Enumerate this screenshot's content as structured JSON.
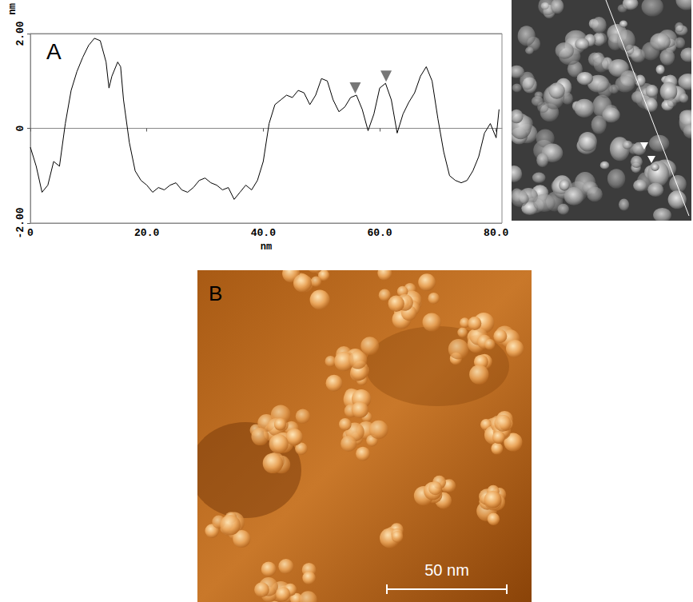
{
  "chart_data": {
    "type": "line",
    "xlabel": "nm",
    "ylabel": "nm",
    "x": [
      0,
      1,
      2,
      3,
      4,
      5,
      6,
      7,
      8,
      9,
      10,
      11,
      12,
      13,
      13.5,
      14,
      15,
      15.5,
      16,
      17,
      18,
      19,
      20,
      21,
      22,
      23,
      24,
      25,
      26,
      27,
      28,
      29,
      30,
      31,
      32,
      33,
      34,
      35,
      36,
      37,
      38,
      39,
      40,
      41,
      42,
      43,
      44,
      45,
      46,
      47,
      48,
      49,
      50,
      51,
      52,
      53,
      54,
      55,
      56,
      57,
      58,
      59,
      60,
      61,
      62,
      63,
      64,
      65,
      66,
      67,
      68,
      69,
      70,
      71,
      72,
      73,
      74,
      75,
      76,
      77,
      78,
      79,
      80,
      80.5
    ],
    "values": [
      -0.4,
      -0.8,
      -1.35,
      -1.2,
      -0.7,
      -0.8,
      0.1,
      0.8,
      1.2,
      1.5,
      1.75,
      1.9,
      1.85,
      1.4,
      0.85,
      1.1,
      1.4,
      1.3,
      0.6,
      -0.3,
      -0.9,
      -1.1,
      -1.2,
      -1.35,
      -1.25,
      -1.3,
      -1.2,
      -1.15,
      -1.3,
      -1.35,
      -1.25,
      -1.1,
      -1.05,
      -1.15,
      -1.2,
      -1.3,
      -1.25,
      -1.5,
      -1.35,
      -1.2,
      -1.3,
      -1.1,
      -0.7,
      0.1,
      0.5,
      0.6,
      0.7,
      0.65,
      0.8,
      0.75,
      0.5,
      0.7,
      1.05,
      1.0,
      0.6,
      0.35,
      0.45,
      0.65,
      0.7,
      0.4,
      -0.05,
      0.3,
      0.85,
      0.95,
      0.6,
      -0.1,
      0.3,
      0.55,
      0.75,
      1.1,
      1.3,
      1.0,
      0.2,
      -0.5,
      -1.0,
      -1.1,
      -1.15,
      -1.1,
      -0.9,
      -0.6,
      -0.1,
      0.1,
      -0.2,
      0.4
    ],
    "color": "#000000",
    "xlim": [
      0,
      81
    ],
    "xticks": [
      0,
      {
        "value": 20,
        "label": "20.0"
      },
      {
        "value": 40,
        "label": "40.0"
      },
      {
        "value": 60,
        "label": "60.0"
      },
      {
        "value": 80,
        "label": "80.0"
      }
    ],
    "ylim": [
      -2,
      2
    ],
    "yticks": [
      {
        "value": -2,
        "label": "-2.00"
      },
      0,
      {
        "value": 2,
        "label": "2.00"
      }
    ],
    "grid": true,
    "annotations": [
      {
        "x": 55.8,
        "y": 0.7,
        "marker": "triangle"
      },
      {
        "x": 61.1,
        "y": 0.95,
        "marker": "triangle"
      }
    ]
  },
  "panels": [
    {
      "label": "A"
    },
    {
      "label": "B",
      "scale_bar": "50 nm"
    }
  ]
}
